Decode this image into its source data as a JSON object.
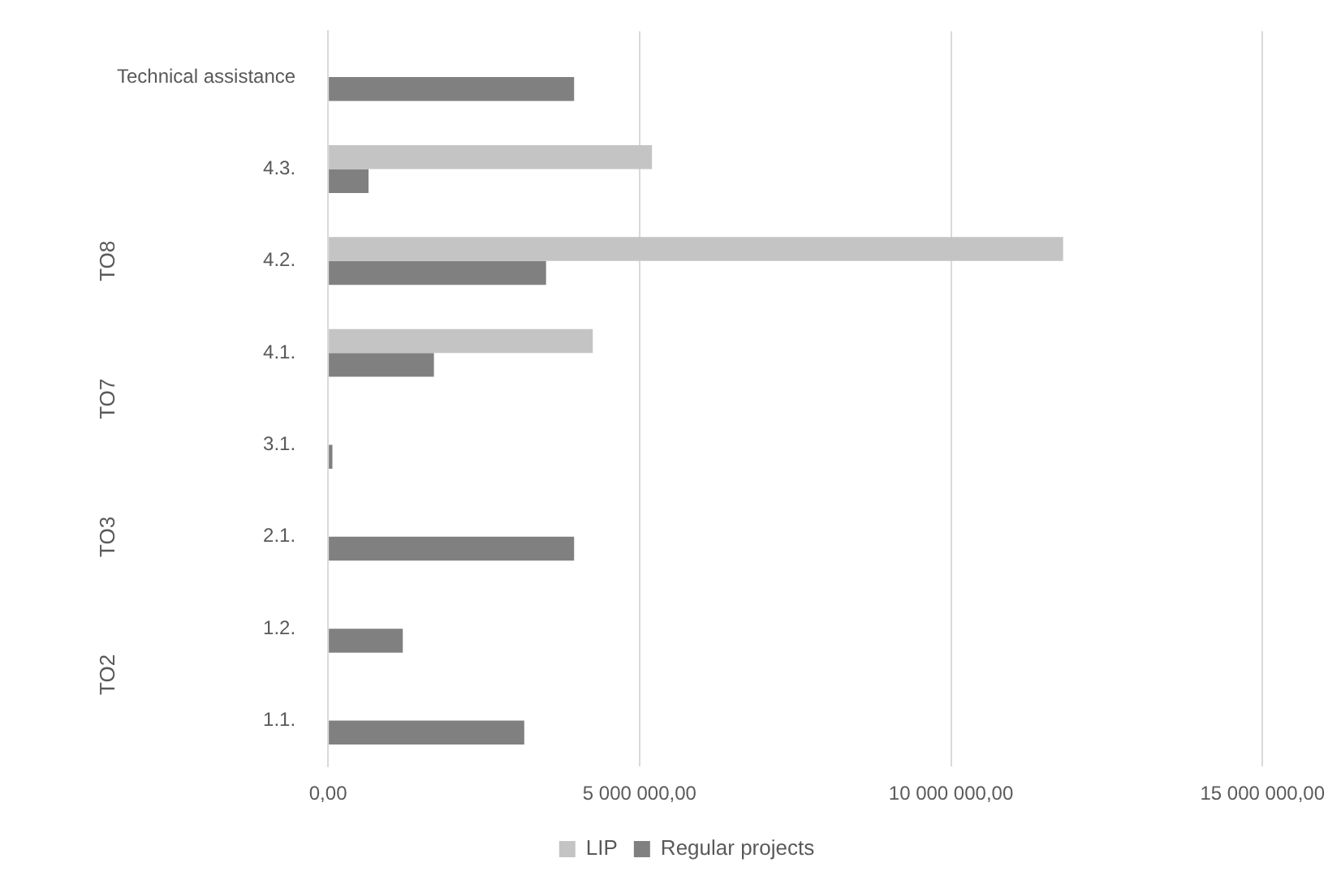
{
  "chart_data": {
    "type": "bar",
    "orientation": "horizontal",
    "categories": [
      "Technical assistance",
      "4.3.",
      "4.2.",
      "4.1.",
      "3.1.",
      "2.1.",
      "1.2.",
      "1.1."
    ],
    "series": [
      {
        "name": "LIP",
        "color": "#c4c4c4",
        "values": [
          null,
          5200000,
          11800000,
          4250000,
          null,
          null,
          null,
          null
        ]
      },
      {
        "name": "Regular projects",
        "color": "#808080",
        "values": [
          3950000,
          650000,
          3500000,
          1700000,
          70000,
          3950000,
          1200000,
          3150000
        ]
      }
    ],
    "xlim": [
      0,
      15000000
    ],
    "xticks": [
      {
        "value": 0,
        "label": "0,00"
      },
      {
        "value": 5000000,
        "label": "5 000 000,00"
      },
      {
        "value": 10000000,
        "label": "10 000 000,00"
      },
      {
        "value": 15000000,
        "label": "15 000 000,00"
      }
    ],
    "annotations": [
      "TO8",
      "TO7",
      "TO3",
      "TO2"
    ],
    "grid": "x",
    "legend": "bottom"
  }
}
